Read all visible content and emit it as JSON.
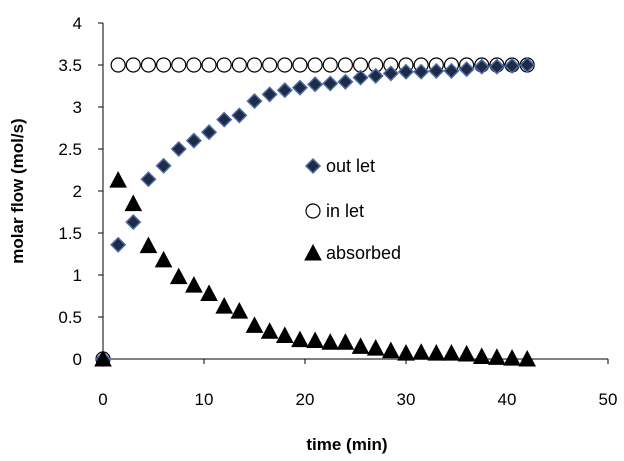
{
  "chart_data": {
    "type": "scatter",
    "xlabel": "time (min)",
    "ylabel": "molar flow  (mol/s)",
    "xlim": [
      0,
      50
    ],
    "ylim": [
      0,
      4
    ],
    "xticks": [
      0,
      10,
      20,
      30,
      40,
      50
    ],
    "yticks": [
      0,
      0.5,
      1,
      1.5,
      2,
      2.5,
      3,
      3.5,
      4
    ],
    "xtick_labels": [
      "0",
      "10",
      "20",
      "30",
      "40",
      "50"
    ],
    "ytick_labels": [
      "0",
      "0.5",
      "1",
      "1.5",
      "2",
      "2.5",
      "3",
      "3.5",
      "4"
    ],
    "grid": false,
    "legend_position": "center-right",
    "series": [
      {
        "name": "out let",
        "marker": "diamond",
        "color": "#1f2a44",
        "edge_color": "#4a6aa8",
        "x": [
          0,
          1.5,
          3,
          4.5,
          6,
          7.5,
          9,
          10.5,
          12,
          13.5,
          15,
          16.5,
          18,
          19.5,
          21,
          22.5,
          24,
          25.5,
          27,
          28.5,
          30,
          31.5,
          33,
          34.5,
          36,
          37.5,
          39,
          40.5,
          42
        ],
        "y": [
          0,
          1.36,
          1.63,
          2.14,
          2.3,
          2.5,
          2.6,
          2.7,
          2.85,
          2.9,
          3.07,
          3.15,
          3.2,
          3.23,
          3.27,
          3.28,
          3.3,
          3.35,
          3.37,
          3.4,
          3.42,
          3.42,
          3.43,
          3.43,
          3.45,
          3.48,
          3.48,
          3.49,
          3.5
        ]
      },
      {
        "name": "in let",
        "marker": "circle",
        "color": "#ffffff",
        "edge_color": "#000000",
        "x": [
          0,
          1.5,
          3,
          4.5,
          6,
          7.5,
          9,
          10.5,
          12,
          13.5,
          15,
          16.5,
          18,
          19.5,
          21,
          22.5,
          24,
          25.5,
          27,
          28.5,
          30,
          31.5,
          33,
          34.5,
          36,
          37.5,
          39,
          40.5,
          42
        ],
        "y": [
          0,
          3.5,
          3.5,
          3.5,
          3.5,
          3.5,
          3.5,
          3.5,
          3.5,
          3.5,
          3.5,
          3.5,
          3.5,
          3.5,
          3.5,
          3.5,
          3.5,
          3.5,
          3.5,
          3.5,
          3.5,
          3.5,
          3.5,
          3.5,
          3.5,
          3.5,
          3.5,
          3.5,
          3.5
        ]
      },
      {
        "name": "absorbed",
        "marker": "triangle",
        "color": "#000000",
        "edge_color": "#000000",
        "x": [
          0,
          1.5,
          3,
          4.5,
          6,
          7.5,
          9,
          10.5,
          12,
          13.5,
          15,
          16.5,
          18,
          19.5,
          21,
          22.5,
          24,
          25.5,
          27,
          28.5,
          30,
          31.5,
          33,
          34.5,
          36,
          37.5,
          39,
          40.5,
          42
        ],
        "y": [
          0,
          2.13,
          1.85,
          1.35,
          1.18,
          0.98,
          0.88,
          0.78,
          0.63,
          0.57,
          0.4,
          0.33,
          0.28,
          0.23,
          0.22,
          0.2,
          0.2,
          0.15,
          0.13,
          0.1,
          0.07,
          0.08,
          0.07,
          0.07,
          0.06,
          0.03,
          0.02,
          0.01,
          0.0
        ]
      }
    ]
  }
}
